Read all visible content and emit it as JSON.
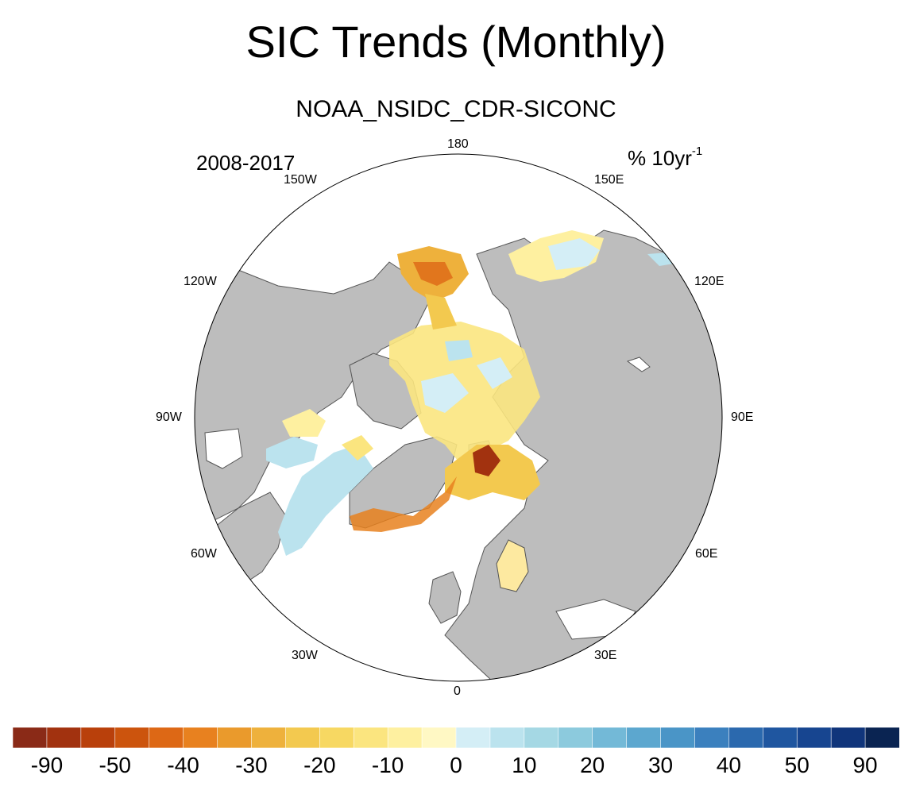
{
  "title": "SIC Trends (Monthly)",
  "subtitle": "NOAA_NSIDC_CDR-SICONC",
  "period": "2008-2017",
  "units": {
    "base": "% 10yr",
    "exponent": "-1"
  },
  "longitude_labels": {
    "lon_180": "180",
    "lon_150W": "150W",
    "lon_150E": "150E",
    "lon_120W": "120W",
    "lon_120E": "120E",
    "lon_90W": "90W",
    "lon_90E": "90E",
    "lon_60W": "60W",
    "lon_60E": "60E",
    "lon_30W": "30W",
    "lon_30E": "30E",
    "lon_0": "0"
  },
  "colorbar": {
    "colors": [
      "#8a2a17",
      "#a2320f",
      "#b9400b",
      "#cc540d",
      "#dd6815",
      "#e8811f",
      "#ea9a2c",
      "#eeb13c",
      "#f3c94f",
      "#f7d862",
      "#fbe57f",
      "#fef0a0",
      "#fff8c4",
      "#d4eef6",
      "#bbe3ee",
      "#a5d8e4",
      "#8ccadd",
      "#73b9d7",
      "#5ca7cf",
      "#4a95c7",
      "#3b80be",
      "#2b69ae",
      "#1f56a0",
      "#174590",
      "#10357b",
      "#0a2452"
    ],
    "labels": [
      "-90",
      "-50",
      "-40",
      "-30",
      "-20",
      "-10",
      "0",
      "10",
      "20",
      "30",
      "40",
      "50",
      "90"
    ]
  },
  "legend_colors": {
    "land": "#bdbdbd",
    "ocean_no_trend": "#ffffff",
    "coast": "#555555"
  }
}
